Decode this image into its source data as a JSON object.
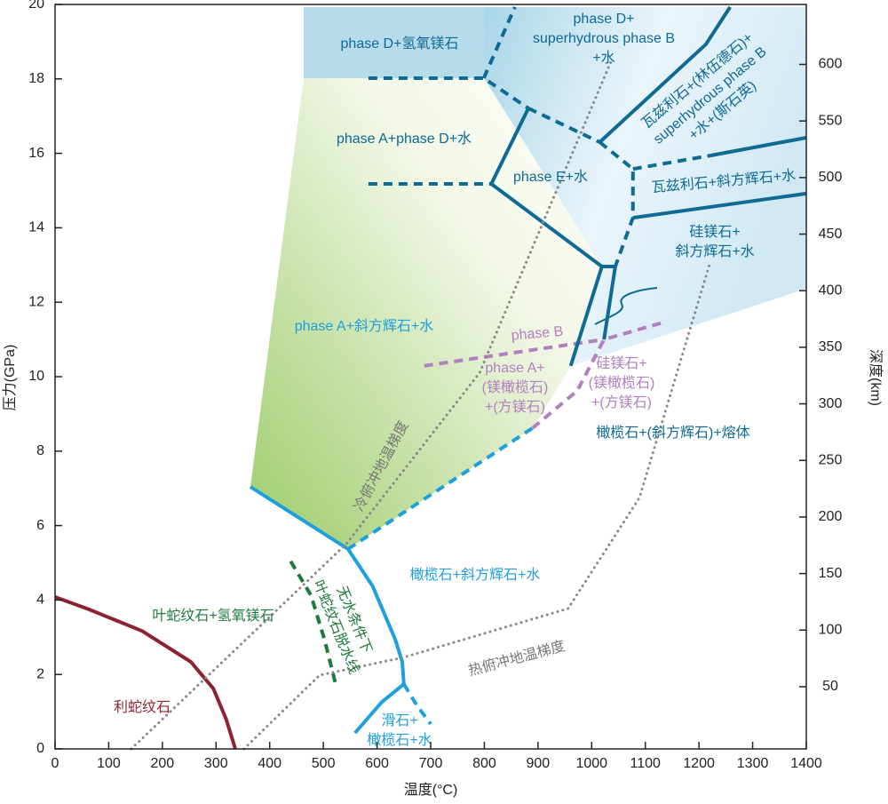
{
  "chart_data": {
    "type": "phase-diagram",
    "xlabel": "温度(°C)",
    "ylabel": "压力(GPa)",
    "y2label": "深度(km)",
    "xlim": [
      0,
      1400
    ],
    "ylim": [
      0,
      20
    ],
    "y2lim": [
      -5,
      653
    ],
    "xticks": [
      0,
      100,
      200,
      300,
      400,
      500,
      600,
      700,
      800,
      900,
      1000,
      1100,
      1200,
      1300,
      1400
    ],
    "yticks": [
      0,
      2,
      4,
      6,
      8,
      10,
      12,
      14,
      16,
      18,
      20
    ],
    "y2ticks": [
      50,
      100,
      150,
      200,
      250,
      300,
      350,
      400,
      450,
      500,
      550,
      600
    ],
    "boundaries": [
      {
        "color": "#8b2332",
        "style": "solid",
        "x": [
          0,
          63,
          162,
          253,
          295,
          319,
          336
        ],
        "y": [
          4.08,
          3.75,
          3.17,
          2.34,
          1.62,
          0.79,
          0
        ]
      },
      {
        "color": "#1e7a3c",
        "style": "dashed",
        "x": [
          439,
          477,
          502,
          523
        ],
        "y": [
          5.04,
          4.13,
          2.94,
          1.74
        ]
      },
      {
        "color": "#1ea0dc",
        "style": "solid",
        "x": [
          364,
          460,
          546,
          592,
          634,
          647,
          650
        ],
        "y": [
          7.04,
          6.16,
          5.37,
          4.37,
          2.94,
          2.34,
          1.74
        ]
      },
      {
        "color": "#1ea0dc",
        "style": "solid",
        "x": [
          650,
          609,
          559
        ],
        "y": [
          1.74,
          1.26,
          0.43
        ]
      },
      {
        "color": "#1ea0dc",
        "style": "dashed",
        "x": [
          650,
          675,
          700
        ],
        "y": [
          1.74,
          1.15,
          0.67
        ]
      },
      {
        "color": "#1ea0dc",
        "style": "dashed",
        "x": [
          546,
          890
        ],
        "y": [
          5.37,
          8.62
        ]
      },
      {
        "color": "#b27fc0",
        "style": "dashed",
        "x": [
          890,
          973,
          1023,
          1139
        ],
        "y": [
          8.62,
          9.62,
          11.0,
          11.48
        ]
      },
      {
        "color": "#b27fc0",
        "style": "dashed",
        "x": [
          688,
          1023
        ],
        "y": [
          10.29,
          11.0
        ]
      },
      {
        "color": "#0f6a94",
        "style": "solid",
        "x": [
          961,
          1019,
          1044,
          1023
        ],
        "y": [
          10.29,
          12.96,
          12.96,
          11.0
        ]
      },
      {
        "color": "#0f6a94",
        "style": "solid",
        "x": [
          1019,
          813,
          882
        ],
        "y": [
          12.96,
          15.18,
          17.21
        ]
      },
      {
        "color": "#0f6a94",
        "style": "dashed",
        "x": [
          584,
          813
        ],
        "y": [
          15.18,
          15.18
        ]
      },
      {
        "color": "#0f6a94",
        "style": "dashed",
        "x": [
          584,
          799,
          882
        ],
        "y": [
          18.02,
          18.02,
          17.21
        ]
      },
      {
        "color": "#0f6a94",
        "style": "dashed",
        "x": [
          799,
          857
        ],
        "y": [
          18.02,
          19.93
        ]
      },
      {
        "color": "#0f6a94",
        "style": "dashed",
        "x": [
          882,
          1015
        ],
        "y": [
          17.21,
          16.3
        ]
      },
      {
        "color": "#0f6a94",
        "style": "solid",
        "x": [
          1015,
          1213,
          1258
        ],
        "y": [
          16.3,
          18.93,
          19.93
        ]
      },
      {
        "color": "#0f6a94",
        "style": "dashed",
        "x": [
          1015,
          1077,
          1077,
          1044
        ],
        "y": [
          16.3,
          15.58,
          14.27,
          12.96
        ]
      },
      {
        "color": "#0f6a94",
        "style": "dashed",
        "x": [
          1077,
          1221
        ],
        "y": [
          15.58,
          15.94
        ]
      },
      {
        "color": "#0f6a94",
        "style": "solid",
        "x": [
          1221,
          1400
        ],
        "y": [
          15.94,
          16.42
        ]
      },
      {
        "color": "#0f6a94",
        "style": "solid",
        "x": [
          1077,
          1400
        ],
        "y": [
          14.27,
          14.92
        ]
      },
      {
        "color": "#888888",
        "style": "dotted",
        "x": [
          142,
          543,
          791,
          1039
        ],
        "y": [
          0,
          5.51,
          10.1,
          18.57
        ]
      },
      {
        "color": "#888888",
        "style": "dotted",
        "x": [
          352,
          493,
          650,
          956,
          1089,
          1221
        ],
        "y": [
          0,
          1.98,
          2.46,
          3.77,
          6.75,
          13.08
        ]
      }
    ],
    "annotations": [
      {
        "color": "#0f6a94",
        "lines": [
          "phase D+氢氧镁石"
        ]
      },
      {
        "color": "#0f6a94",
        "lines": [
          "phase D+",
          "superhydrous phase B",
          "+水"
        ]
      },
      {
        "color": "#0f6a94",
        "lines": [
          "瓦兹利石+(林伍德石)+",
          "superhydrous phase B",
          "+水+(斯石英)"
        ]
      },
      {
        "color": "#0f6a94",
        "lines": [
          "phase A+phase D+水"
        ]
      },
      {
        "color": "#0f6a94",
        "lines": [
          "phase E+水"
        ]
      },
      {
        "color": "#0f6a94",
        "lines": [
          "瓦兹利石+斜方辉石+水"
        ]
      },
      {
        "color": "#0f6a94",
        "lines": [
          "硅镁石+",
          "斜方辉石+水"
        ]
      },
      {
        "color": "#1ea0dc",
        "lines": [
          "phase A+斜方辉石+水"
        ]
      },
      {
        "color": "#b27fc0",
        "lines": [
          "phase B"
        ]
      },
      {
        "color": "#b27fc0",
        "lines": [
          "phase A+",
          "(镁橄榄石)",
          "+(方镁石)"
        ]
      },
      {
        "color": "#b27fc0",
        "lines": [
          "硅镁石+",
          "(镁橄榄石)",
          "+(方镁石)"
        ]
      },
      {
        "color": "#0f6a94",
        "lines": [
          "橄榄石+(斜方辉石)+熔体"
        ]
      },
      {
        "color": "#777777",
        "lines": [
          "冷俯冲地温梯度"
        ]
      },
      {
        "color": "#1ea0dc",
        "lines": [
          "橄榄石+斜方辉石+水"
        ]
      },
      {
        "color": "#1e7a3c",
        "lines": [
          "叶蛇纹石+氢氧镁石"
        ]
      },
      {
        "color": "#1e7a3c",
        "lines": [
          "无水条件下",
          "叶蛇纹石脱水线"
        ]
      },
      {
        "color": "#777777",
        "lines": [
          "热俯冲地温梯度"
        ]
      },
      {
        "color": "#8b2332",
        "lines": [
          "利蛇纹石"
        ]
      },
      {
        "color": "#1ea0dc",
        "lines": [
          "滑石+",
          "橄榄石+水"
        ]
      }
    ]
  }
}
